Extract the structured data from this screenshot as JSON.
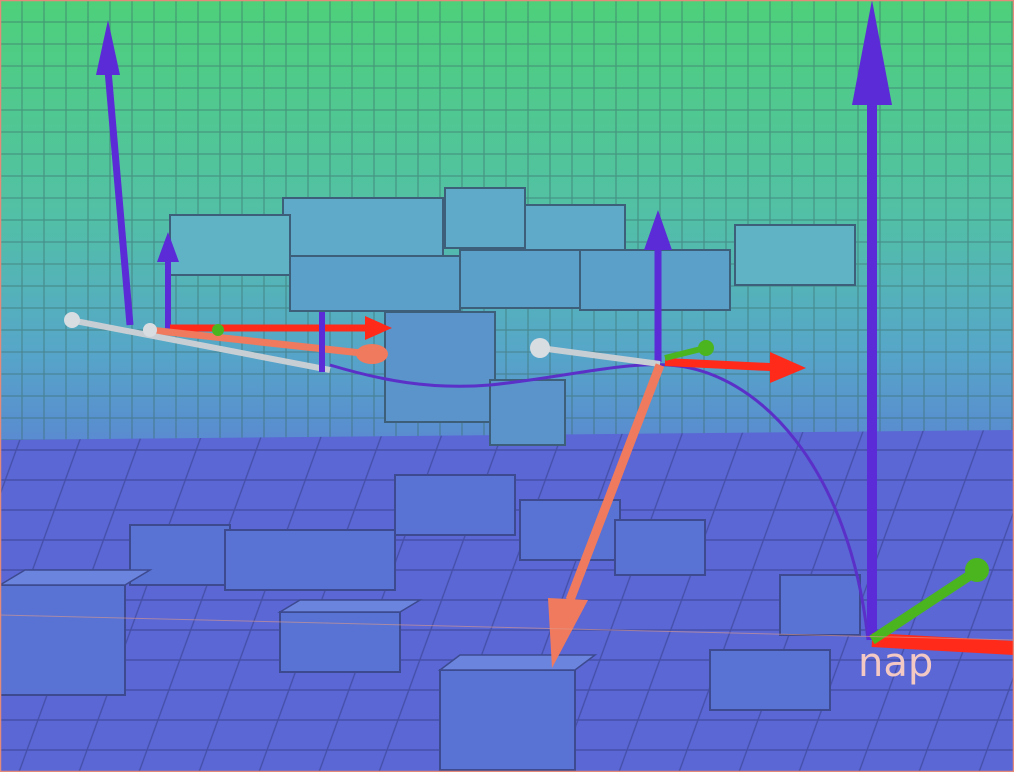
{
  "scene": {
    "frame_label": "nap",
    "colors": {
      "sky_top": "#4fcd7e",
      "sky_mid": "#55b8b8",
      "wall_low": "#5b9fd0",
      "floor": "#5966d1",
      "axis_x": "#ff2a1a",
      "axis_y": "#4bb520",
      "axis_z": "#5a2bd6",
      "vector_salmon": "#f07a5e",
      "vector_grey": "#c8cfd4",
      "trajectory": "#5a30c8"
    },
    "objects": [
      "voxel-occupancy-map",
      "world-frame",
      "robot-frame-current",
      "robot-frame-goal",
      "trajectory-curve"
    ]
  }
}
